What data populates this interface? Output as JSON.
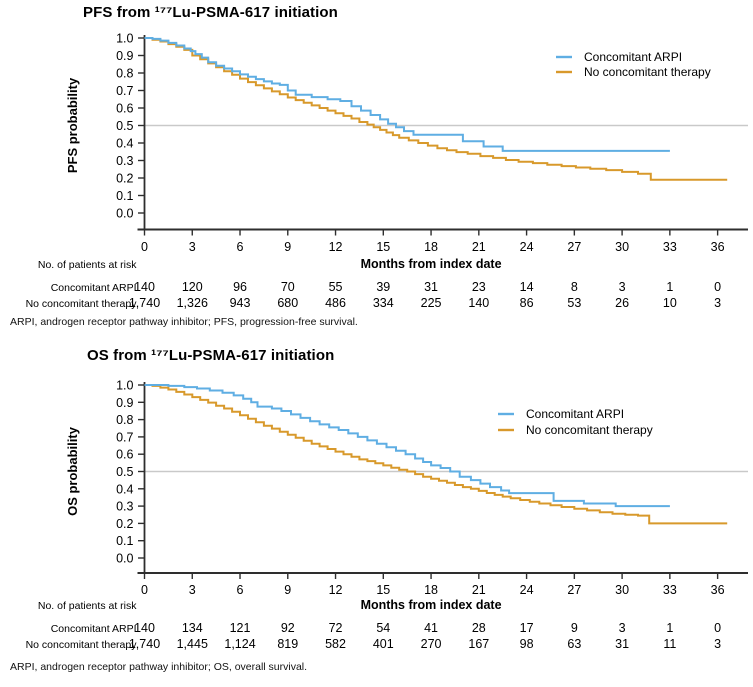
{
  "colors": {
    "arpi_blue": "#5FAEE3",
    "no_therapy_orange": "#D8992B",
    "reference_line_gray": "#C9C9C9",
    "axis_black": "#2E2E2E",
    "text_black": "#000000"
  },
  "chart_data": [
    {
      "type": "line",
      "subtype": "kaplan-meier-step",
      "title": "PFS from ¹⁷⁷Lu-PSMA-617 initiation",
      "ylabel": "PFS probability",
      "xlabel": "Months from index date",
      "xlim": [
        0,
        37
      ],
      "ylim": [
        0.0,
        1.0
      ],
      "xticks": [
        0,
        3,
        6,
        9,
        12,
        15,
        18,
        21,
        24,
        27,
        30,
        33,
        36
      ],
      "yticks": [
        0.0,
        0.1,
        0.2,
        0.3,
        0.4,
        0.5,
        0.6,
        0.7,
        0.8,
        0.9,
        1.0
      ],
      "grid": false,
      "reference_line_y": 0.5,
      "legend_position": "top-right-inside",
      "legend": [
        "Concomitant ARPI",
        "No concomitant therapy"
      ],
      "series": [
        {
          "name": "Concomitant ARPI",
          "color": "#5FAEE3",
          "steps": [
            [
              0,
              1.0
            ],
            [
              0.5,
              0.995
            ],
            [
              1.0,
              0.985
            ],
            [
              1.5,
              0.972
            ],
            [
              2.0,
              0.957
            ],
            [
              2.5,
              0.94
            ],
            [
              2.9,
              0.925
            ],
            [
              3.2,
              0.908
            ],
            [
              3.6,
              0.888
            ],
            [
              4.0,
              0.862
            ],
            [
              4.5,
              0.842
            ],
            [
              5.0,
              0.826
            ],
            [
              5.5,
              0.81
            ],
            [
              6.0,
              0.792
            ],
            [
              6.5,
              0.778
            ],
            [
              7.0,
              0.765
            ],
            [
              7.5,
              0.752
            ],
            [
              8.0,
              0.74
            ],
            [
              8.5,
              0.732
            ],
            [
              9.0,
              0.7
            ],
            [
              9.5,
              0.676
            ],
            [
              10.5,
              0.662
            ],
            [
              11.5,
              0.65
            ],
            [
              12.3,
              0.64
            ],
            [
              13.0,
              0.61
            ],
            [
              13.6,
              0.585
            ],
            [
              14.2,
              0.56
            ],
            [
              14.8,
              0.535
            ],
            [
              15.3,
              0.51
            ],
            [
              15.8,
              0.49
            ],
            [
              16.3,
              0.468
            ],
            [
              16.9,
              0.447
            ],
            [
              19.8,
              0.447
            ],
            [
              20.0,
              0.41
            ],
            [
              21.3,
              0.38
            ],
            [
              22.5,
              0.355
            ],
            [
              33.0,
              0.355
            ]
          ]
        },
        {
          "name": "No concomitant therapy",
          "color": "#D8992B",
          "steps": [
            [
              0,
              1.0
            ],
            [
              0.5,
              0.99
            ],
            [
              1.0,
              0.98
            ],
            [
              1.5,
              0.965
            ],
            [
              2.0,
              0.95
            ],
            [
              2.5,
              0.932
            ],
            [
              3.0,
              0.9
            ],
            [
              3.5,
              0.878
            ],
            [
              4.0,
              0.855
            ],
            [
              4.5,
              0.833
            ],
            [
              5.0,
              0.81
            ],
            [
              5.5,
              0.79
            ],
            [
              6.0,
              0.768
            ],
            [
              6.5,
              0.748
            ],
            [
              7.0,
              0.73
            ],
            [
              7.5,
              0.712
            ],
            [
              8.0,
              0.695
            ],
            [
              8.5,
              0.678
            ],
            [
              9.0,
              0.66
            ],
            [
              9.5,
              0.645
            ],
            [
              10.0,
              0.63
            ],
            [
              10.5,
              0.615
            ],
            [
              11.0,
              0.6
            ],
            [
              11.5,
              0.585
            ],
            [
              12.0,
              0.57
            ],
            [
              12.5,
              0.555
            ],
            [
              13.0,
              0.54
            ],
            [
              13.5,
              0.52
            ],
            [
              14.0,
              0.505
            ],
            [
              14.4,
              0.49
            ],
            [
              14.8,
              0.475
            ],
            [
              15.2,
              0.46
            ],
            [
              15.6,
              0.445
            ],
            [
              16.0,
              0.43
            ],
            [
              16.6,
              0.415
            ],
            [
              17.2,
              0.4
            ],
            [
              17.8,
              0.385
            ],
            [
              18.4,
              0.37
            ],
            [
              19.0,
              0.358
            ],
            [
              19.6,
              0.348
            ],
            [
              20.3,
              0.338
            ],
            [
              21.1,
              0.325
            ],
            [
              21.9,
              0.315
            ],
            [
              22.7,
              0.303
            ],
            [
              23.5,
              0.293
            ],
            [
              24.4,
              0.285
            ],
            [
              25.3,
              0.276
            ],
            [
              26.2,
              0.268
            ],
            [
              27.1,
              0.26
            ],
            [
              28.0,
              0.253
            ],
            [
              29.0,
              0.245
            ],
            [
              30.0,
              0.235
            ],
            [
              31.0,
              0.224
            ],
            [
              31.8,
              0.19
            ],
            [
              36.6,
              0.19
            ]
          ]
        }
      ],
      "risk_table": {
        "caption": "No. of patients at risk",
        "rows": [
          {
            "label": "Concomitant ARPI",
            "values": [
              "140",
              "120",
              "96",
              "70",
              "55",
              "39",
              "31",
              "23",
              "14",
              "8",
              "3",
              "1",
              "0"
            ]
          },
          {
            "label": "No concomitant therapy",
            "values": [
              "1,740",
              "1,326",
              "943",
              "680",
              "486",
              "334",
              "225",
              "140",
              "86",
              "53",
              "26",
              "10",
              "3"
            ]
          }
        ]
      },
      "footnote": "ARPI, androgen receptor pathway inhibitor; PFS, progression-free survival."
    },
    {
      "type": "line",
      "subtype": "kaplan-meier-step",
      "title": "OS from ¹⁷⁷Lu-PSMA-617 initiation",
      "ylabel": "OS probability",
      "xlabel": "Months from index date",
      "xlim": [
        0,
        37
      ],
      "ylim": [
        0.0,
        1.0
      ],
      "xticks": [
        0,
        3,
        6,
        9,
        12,
        15,
        18,
        21,
        24,
        27,
        30,
        33,
        36
      ],
      "yticks": [
        0.0,
        0.1,
        0.2,
        0.3,
        0.4,
        0.5,
        0.6,
        0.7,
        0.8,
        0.9,
        1.0
      ],
      "grid": false,
      "reference_line_y": 0.5,
      "legend_position": "top-right-inside",
      "legend": [
        "Concomitant ARPI",
        "No concomitant therapy"
      ],
      "series": [
        {
          "name": "Concomitant ARPI",
          "color": "#5FAEE3",
          "steps": [
            [
              0,
              1.0
            ],
            [
              1.5,
              0.995
            ],
            [
              2.5,
              0.988
            ],
            [
              3.3,
              0.98
            ],
            [
              4.1,
              0.968
            ],
            [
              4.9,
              0.955
            ],
            [
              5.6,
              0.94
            ],
            [
              6.2,
              0.92
            ],
            [
              6.7,
              0.9
            ],
            [
              7.1,
              0.875
            ],
            [
              8.0,
              0.864
            ],
            [
              8.6,
              0.85
            ],
            [
              9.2,
              0.83
            ],
            [
              9.8,
              0.81
            ],
            [
              10.4,
              0.79
            ],
            [
              11.0,
              0.772
            ],
            [
              11.6,
              0.755
            ],
            [
              12.2,
              0.74
            ],
            [
              12.8,
              0.72
            ],
            [
              13.4,
              0.7
            ],
            [
              14.0,
              0.68
            ],
            [
              14.6,
              0.66
            ],
            [
              15.2,
              0.64
            ],
            [
              15.8,
              0.62
            ],
            [
              16.4,
              0.6
            ],
            [
              17.0,
              0.575
            ],
            [
              17.5,
              0.555
            ],
            [
              18.0,
              0.535
            ],
            [
              18.6,
              0.52
            ],
            [
              19.2,
              0.5
            ],
            [
              19.8,
              0.47
            ],
            [
              20.5,
              0.45
            ],
            [
              21.1,
              0.43
            ],
            [
              21.7,
              0.41
            ],
            [
              22.4,
              0.39
            ],
            [
              22.9,
              0.375
            ],
            [
              25.7,
              0.33
            ],
            [
              27.6,
              0.315
            ],
            [
              29.6,
              0.3
            ],
            [
              33.0,
              0.3
            ]
          ]
        },
        {
          "name": "No concomitant therapy",
          "color": "#D8992B",
          "steps": [
            [
              0,
              1.0
            ],
            [
              0.5,
              0.995
            ],
            [
              1.0,
              0.985
            ],
            [
              1.5,
              0.974
            ],
            [
              2.0,
              0.96
            ],
            [
              2.5,
              0.945
            ],
            [
              3.0,
              0.93
            ],
            [
              3.5,
              0.914
            ],
            [
              4.0,
              0.898
            ],
            [
              4.5,
              0.88
            ],
            [
              5.0,
              0.864
            ],
            [
              5.5,
              0.845
            ],
            [
              6.0,
              0.825
            ],
            [
              6.5,
              0.805
            ],
            [
              7.0,
              0.785
            ],
            [
              7.5,
              0.765
            ],
            [
              8.0,
              0.748
            ],
            [
              8.5,
              0.73
            ],
            [
              9.0,
              0.712
            ],
            [
              9.5,
              0.695
            ],
            [
              10.0,
              0.678
            ],
            [
              10.5,
              0.66
            ],
            [
              11.0,
              0.645
            ],
            [
              11.5,
              0.63
            ],
            [
              12.0,
              0.615
            ],
            [
              12.5,
              0.6
            ],
            [
              13.0,
              0.585
            ],
            [
              13.5,
              0.57
            ],
            [
              14.0,
              0.56
            ],
            [
              14.5,
              0.548
            ],
            [
              15.0,
              0.535
            ],
            [
              15.5,
              0.522
            ],
            [
              16.0,
              0.51
            ],
            [
              16.5,
              0.5
            ],
            [
              17.0,
              0.485
            ],
            [
              17.5,
              0.47
            ],
            [
              18.0,
              0.458
            ],
            [
              18.5,
              0.446
            ],
            [
              19.0,
              0.435
            ],
            [
              19.5,
              0.422
            ],
            [
              20.0,
              0.41
            ],
            [
              20.5,
              0.4
            ],
            [
              21.0,
              0.388
            ],
            [
              21.5,
              0.376
            ],
            [
              22.0,
              0.365
            ],
            [
              22.5,
              0.355
            ],
            [
              23.0,
              0.345
            ],
            [
              23.6,
              0.335
            ],
            [
              24.2,
              0.325
            ],
            [
              24.8,
              0.315
            ],
            [
              25.5,
              0.305
            ],
            [
              26.2,
              0.295
            ],
            [
              27.0,
              0.285
            ],
            [
              27.8,
              0.275
            ],
            [
              28.6,
              0.265
            ],
            [
              29.4,
              0.256
            ],
            [
              30.2,
              0.25
            ],
            [
              31.0,
              0.245
            ],
            [
              31.7,
              0.2
            ],
            [
              36.6,
              0.2
            ]
          ]
        }
      ],
      "risk_table": {
        "caption": "No. of patients at risk",
        "rows": [
          {
            "label": "Concomitant ARPI",
            "values": [
              "140",
              "134",
              "121",
              "92",
              "72",
              "54",
              "41",
              "28",
              "17",
              "9",
              "3",
              "1",
              "0"
            ]
          },
          {
            "label": "No concomitant therapy",
            "values": [
              "1,740",
              "1,445",
              "1,124",
              "819",
              "582",
              "401",
              "270",
              "167",
              "98",
              "63",
              "31",
              "11",
              "3"
            ]
          }
        ]
      },
      "footnote": "ARPI, androgen receptor pathway inhibitor; OS, overall survival."
    }
  ]
}
